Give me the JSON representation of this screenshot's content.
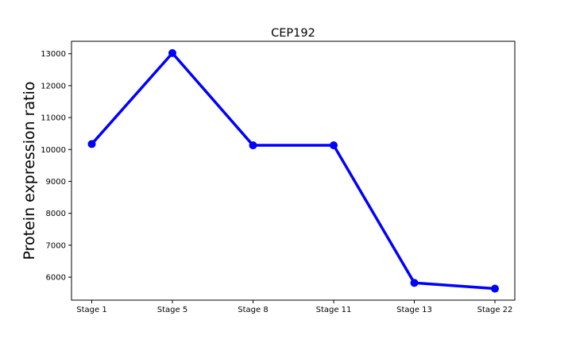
{
  "chart_data": {
    "type": "line",
    "title": "CEP192",
    "xlabel": "",
    "ylabel": "Protein expression ratio",
    "categories": [
      "Stage 1",
      "Stage 5",
      "Stage 8",
      "Stage 11",
      "Stage 13",
      "Stage 22"
    ],
    "series": [
      {
        "values": [
          10170,
          13020,
          10130,
          10130,
          5820,
          5640
        ],
        "color": "#0000ff"
      }
    ],
    "yticks": [
      6000,
      7000,
      8000,
      9000,
      10000,
      11000,
      12000,
      13000
    ],
    "ylim": [
      5280,
      13390
    ],
    "grid": false,
    "legend": "none"
  }
}
